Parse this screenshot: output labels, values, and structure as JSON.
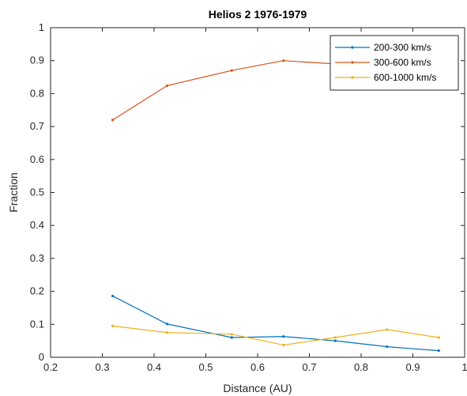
{
  "chart_data": {
    "type": "line",
    "title": "Helios 2 1976-1979",
    "xlabel": "Distance (AU)",
    "ylabel": "Fraction",
    "xlim": [
      0.2,
      1.0
    ],
    "ylim": [
      0,
      1
    ],
    "xticks": [
      "0.2",
      "0.3",
      "0.4",
      "0.5",
      "0.6",
      "0.7",
      "0.8",
      "0.9",
      "1"
    ],
    "yticks": [
      "0",
      "0.1",
      "0.2",
      "0.3",
      "0.4",
      "0.5",
      "0.6",
      "0.7",
      "0.8",
      "0.9",
      "1"
    ],
    "grid": false,
    "legend_position": "top-right",
    "x": [
      0.32,
      0.425,
      0.55,
      0.65,
      0.75,
      0.85,
      0.95
    ],
    "series": [
      {
        "name": "200-300 km/s",
        "color": "#0072BD",
        "values": [
          0.186,
          0.101,
          0.06,
          0.063,
          0.05,
          0.032,
          0.02
        ]
      },
      {
        "name": "300-600 km/s",
        "color": "#D95319",
        "values": [
          0.72,
          0.824,
          0.87,
          0.9,
          0.89,
          0.885,
          0.92
        ]
      },
      {
        "name": "600-1000 km/s",
        "color": "#EDB120",
        "values": [
          0.095,
          0.075,
          0.07,
          0.037,
          0.06,
          0.084,
          0.06
        ]
      }
    ]
  }
}
